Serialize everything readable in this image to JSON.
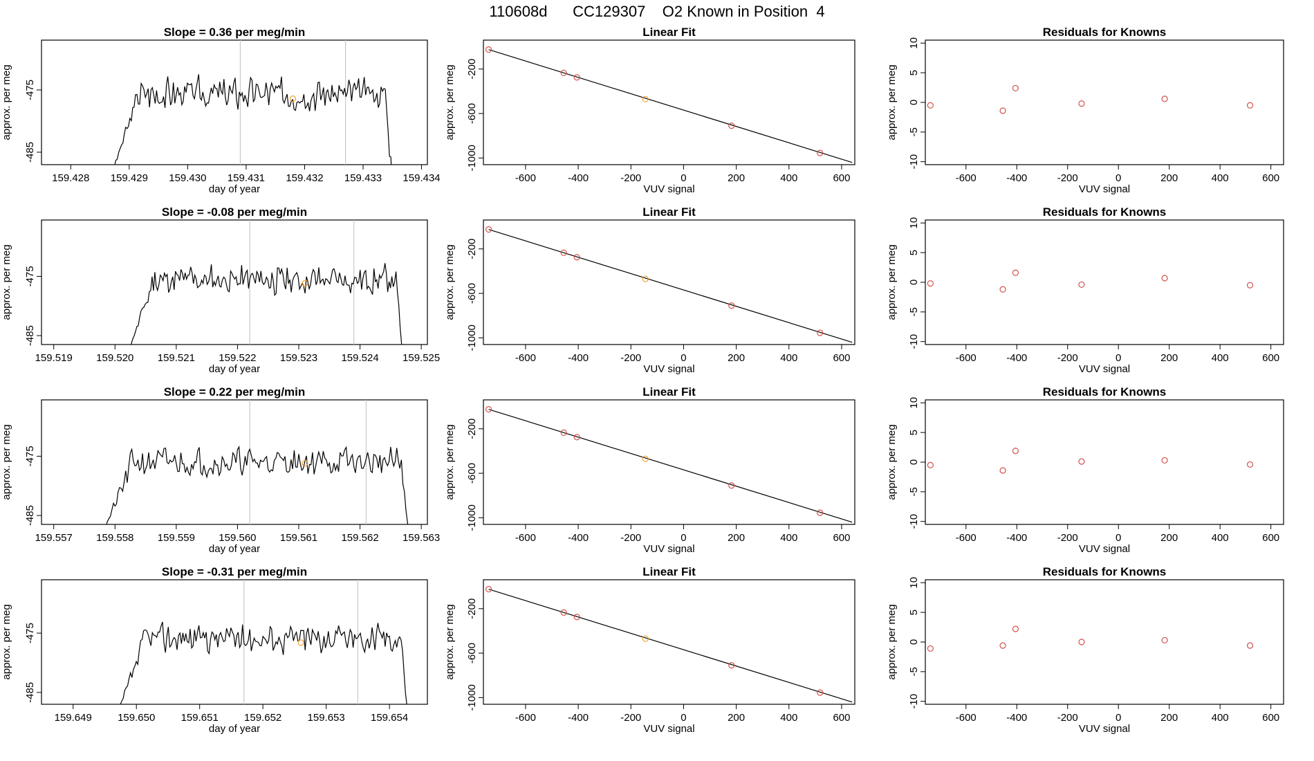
{
  "figure": {
    "title": "110608d      CC129307    O2 Known in Position  4"
  },
  "colors": {
    "trace": "#000000",
    "marker_orange": "#f0a030",
    "marker_red": "#d0504a",
    "vline": "#c8c8c8"
  },
  "chart_data": [
    {
      "type": "line",
      "title": "Slope =  0.36  per meg/min",
      "xlabel": "day of year",
      "ylabel": "approx. per meg",
      "x_ticks": [
        "159.428",
        "159.429",
        "159.430",
        "159.431",
        "159.432",
        "159.433",
        "159.434"
      ],
      "xlim": [
        159.4275,
        159.4341
      ],
      "y_ticks": [
        "-485",
        "-475"
      ],
      "ylim": [
        -487,
        -467
      ],
      "x_start": 159.4287,
      "x_end": 159.4335,
      "y_level": -475.6,
      "y_amp": 2.6,
      "seed": 3,
      "vlines": [
        159.4309,
        159.4327
      ],
      "marker": {
        "x": 159.4318,
        "y": -476.4
      }
    },
    {
      "type": "scatter",
      "title": "Linear Fit",
      "xlabel": "VUV signal",
      "ylabel": "approx. per meg",
      "x_ticks": [
        -600,
        -400,
        -200,
        0,
        200,
        400,
        600
      ],
      "xlim": [
        -760,
        650
      ],
      "y_ticks": [
        -200,
        -600,
        -1000
      ],
      "ylim": [
        -1060,
        60
      ],
      "fit": {
        "x": [
          -740,
          640
        ],
        "y": [
          -25,
          -1040
        ]
      },
      "points": [
        {
          "x": -740,
          "y": -25,
          "color": "red"
        },
        {
          "x": -455,
          "y": -235,
          "color": "red"
        },
        {
          "x": -405,
          "y": -275,
          "color": "red"
        },
        {
          "x": -145,
          "y": -470,
          "color": "orange"
        },
        {
          "x": 182,
          "y": -710,
          "color": "red"
        },
        {
          "x": 518,
          "y": -955,
          "color": "red"
        }
      ]
    },
    {
      "type": "scatter",
      "title": "Residuals for Knowns",
      "xlabel": "VUV signal",
      "ylabel": "approx. per meg",
      "x_ticks": [
        -600,
        -400,
        -200,
        0,
        200,
        400,
        600
      ],
      "xlim": [
        -760,
        650
      ],
      "y_ticks": [
        -10,
        -5,
        0,
        5,
        10
      ],
      "ylim": [
        -10.5,
        10.5
      ],
      "points": [
        {
          "x": -740,
          "y": -0.5,
          "color": "red"
        },
        {
          "x": -455,
          "y": -1.4,
          "color": "red"
        },
        {
          "x": -405,
          "y": 2.4,
          "color": "red"
        },
        {
          "x": -145,
          "y": -0.2,
          "color": "red"
        },
        {
          "x": 182,
          "y": 0.6,
          "color": "red"
        },
        {
          "x": 518,
          "y": -0.5,
          "color": "red"
        }
      ]
    },
    {
      "type": "line",
      "title": "Slope =  -0.08  per meg/min",
      "xlabel": "day of year",
      "ylabel": "approx. per meg",
      "x_ticks": [
        "159.519",
        "159.520",
        "159.521",
        "159.522",
        "159.523",
        "159.524",
        "159.525"
      ],
      "xlim": [
        159.5188,
        159.5251
      ],
      "y_ticks": [
        "-485",
        "-475"
      ],
      "ylim": [
        -486.5,
        -465.5
      ],
      "x_start": 159.5202,
      "x_end": 159.5247,
      "y_level": -475.6,
      "y_amp": 2.5,
      "seed": 11,
      "vlines": [
        159.5222,
        159.5239
      ],
      "marker": {
        "x": 159.5231,
        "y": -476.2
      }
    },
    {
      "type": "scatter",
      "title": "Linear Fit",
      "xlabel": "VUV signal",
      "ylabel": "approx. per meg",
      "x_ticks": [
        -600,
        -400,
        -200,
        0,
        200,
        400,
        600
      ],
      "xlim": [
        -760,
        650
      ],
      "y_ticks": [
        -200,
        -600,
        -1000
      ],
      "ylim": [
        -1060,
        60
      ],
      "fit": {
        "x": [
          -740,
          640
        ],
        "y": [
          -25,
          -1040
        ]
      },
      "points": [
        {
          "x": -740,
          "y": -25,
          "color": "red"
        },
        {
          "x": -455,
          "y": -235,
          "color": "red"
        },
        {
          "x": -405,
          "y": -275,
          "color": "red"
        },
        {
          "x": -145,
          "y": -470,
          "color": "orange"
        },
        {
          "x": 182,
          "y": -710,
          "color": "red"
        },
        {
          "x": 518,
          "y": -955,
          "color": "red"
        }
      ]
    },
    {
      "type": "scatter",
      "title": "Residuals for Knowns",
      "xlabel": "VUV signal",
      "ylabel": "approx. per meg",
      "x_ticks": [
        -600,
        -400,
        -200,
        0,
        200,
        400,
        600
      ],
      "xlim": [
        -760,
        650
      ],
      "y_ticks": [
        -10,
        -5,
        0,
        5,
        10
      ],
      "ylim": [
        -10.5,
        10.5
      ],
      "points": [
        {
          "x": -740,
          "y": -0.2,
          "color": "red"
        },
        {
          "x": -455,
          "y": -1.2,
          "color": "red"
        },
        {
          "x": -405,
          "y": 1.6,
          "color": "red"
        },
        {
          "x": -145,
          "y": -0.4,
          "color": "red"
        },
        {
          "x": 182,
          "y": 0.7,
          "color": "red"
        },
        {
          "x": 518,
          "y": -0.5,
          "color": "red"
        }
      ]
    },
    {
      "type": "line",
      "title": "Slope =  0.22  per meg/min",
      "xlabel": "day of year",
      "ylabel": "approx. per meg",
      "x_ticks": [
        "159.557",
        "159.558",
        "159.559",
        "159.560",
        "159.561",
        "159.562",
        "159.563"
      ],
      "xlim": [
        159.5568,
        159.5631
      ],
      "y_ticks": [
        "-485",
        "-475"
      ],
      "ylim": [
        -486.5,
        -465.5
      ],
      "x_start": 159.5578,
      "x_end": 159.5628,
      "y_level": -476.0,
      "y_amp": 2.4,
      "seed": 21,
      "vlines": [
        159.5602,
        159.5621
      ],
      "marker": {
        "x": 159.5611,
        "y": -476.2
      }
    },
    {
      "type": "scatter",
      "title": "Linear Fit",
      "xlabel": "VUV signal",
      "ylabel": "approx. per meg",
      "x_ticks": [
        -600,
        -400,
        -200,
        0,
        200,
        400,
        600
      ],
      "xlim": [
        -760,
        650
      ],
      "y_ticks": [
        -200,
        -600,
        -1000
      ],
      "ylim": [
        -1060,
        60
      ],
      "fit": {
        "x": [
          -740,
          640
        ],
        "y": [
          -25,
          -1040
        ]
      },
      "points": [
        {
          "x": -740,
          "y": -25,
          "color": "red"
        },
        {
          "x": -455,
          "y": -235,
          "color": "red"
        },
        {
          "x": -405,
          "y": -275,
          "color": "red"
        },
        {
          "x": -145,
          "y": -470,
          "color": "orange"
        },
        {
          "x": 182,
          "y": -710,
          "color": "red"
        },
        {
          "x": 518,
          "y": -955,
          "color": "red"
        }
      ]
    },
    {
      "type": "scatter",
      "title": "Residuals for Knowns",
      "xlabel": "VUV signal",
      "ylabel": "approx. per meg",
      "x_ticks": [
        -600,
        -400,
        -200,
        0,
        200,
        400,
        600
      ],
      "xlim": [
        -760,
        650
      ],
      "y_ticks": [
        -10,
        -5,
        0,
        5,
        10
      ],
      "ylim": [
        -10.5,
        10.5
      ],
      "points": [
        {
          "x": -740,
          "y": -0.5,
          "color": "red"
        },
        {
          "x": -455,
          "y": -1.4,
          "color": "red"
        },
        {
          "x": -405,
          "y": 1.9,
          "color": "red"
        },
        {
          "x": -145,
          "y": 0.1,
          "color": "red"
        },
        {
          "x": 182,
          "y": 0.3,
          "color": "red"
        },
        {
          "x": 518,
          "y": -0.4,
          "color": "red"
        }
      ]
    },
    {
      "type": "line",
      "title": "Slope =  -0.31  per meg/min",
      "xlabel": "day of year",
      "ylabel": "approx. per meg",
      "x_ticks": [
        "159.649",
        "159.650",
        "159.651",
        "159.652",
        "159.653",
        "159.654"
      ],
      "xlim": [
        159.6485,
        159.6546
      ],
      "y_ticks": [
        "-485",
        "-475"
      ],
      "ylim": [
        -487,
        -466
      ],
      "x_start": 159.6497,
      "x_end": 159.6543,
      "y_level": -475.8,
      "y_amp": 2.5,
      "seed": 37,
      "vlines": [
        159.6517,
        159.6535
      ],
      "marker": {
        "x": 159.6526,
        "y": -476.6
      }
    },
    {
      "type": "scatter",
      "title": "Linear Fit",
      "xlabel": "VUV signal",
      "ylabel": "approx. per meg",
      "x_ticks": [
        -600,
        -400,
        -200,
        0,
        200,
        400,
        600
      ],
      "xlim": [
        -760,
        650
      ],
      "y_ticks": [
        -200,
        -600,
        -1000
      ],
      "ylim": [
        -1060,
        60
      ],
      "fit": {
        "x": [
          -740,
          640
        ],
        "y": [
          -25,
          -1040
        ]
      },
      "points": [
        {
          "x": -740,
          "y": -25,
          "color": "red"
        },
        {
          "x": -455,
          "y": -235,
          "color": "red"
        },
        {
          "x": -405,
          "y": -275,
          "color": "red"
        },
        {
          "x": -145,
          "y": -470,
          "color": "orange"
        },
        {
          "x": 182,
          "y": -710,
          "color": "red"
        },
        {
          "x": 518,
          "y": -955,
          "color": "red"
        }
      ]
    },
    {
      "type": "scatter",
      "title": "Residuals for Knowns",
      "xlabel": "VUV signal",
      "ylabel": "approx. per meg",
      "x_ticks": [
        -600,
        -400,
        -200,
        0,
        200,
        400,
        600
      ],
      "xlim": [
        -760,
        650
      ],
      "y_ticks": [
        -10,
        -5,
        0,
        5,
        10
      ],
      "ylim": [
        -10.5,
        10.5
      ],
      "points": [
        {
          "x": -740,
          "y": -1.1,
          "color": "red"
        },
        {
          "x": -455,
          "y": -0.6,
          "color": "red"
        },
        {
          "x": -405,
          "y": 2.2,
          "color": "red"
        },
        {
          "x": -145,
          "y": 0.0,
          "color": "red"
        },
        {
          "x": 182,
          "y": 0.3,
          "color": "red"
        },
        {
          "x": 518,
          "y": -0.6,
          "color": "red"
        }
      ]
    }
  ]
}
